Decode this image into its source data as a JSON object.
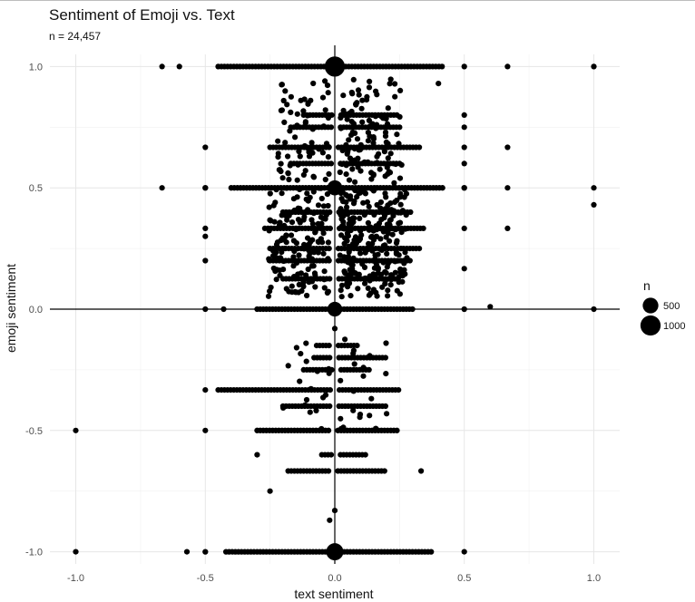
{
  "chart_data": {
    "type": "scatter",
    "title": "Sentiment of Emoji vs. Text",
    "subtitle": "n = 24,457",
    "xlabel": "text sentiment",
    "ylabel": "emoji sentiment",
    "xlim": [
      -1.1,
      1.1
    ],
    "ylim": [
      -1.05,
      1.05
    ],
    "x_ticks": [
      -1.0,
      -0.5,
      0.0,
      0.5,
      1.0
    ],
    "x_tick_labels": [
      "-1.0",
      "-0.5",
      "0.0",
      "0.5",
      "1.0"
    ],
    "y_ticks": [
      -1.0,
      -0.5,
      0.0,
      0.5,
      1.0
    ],
    "y_tick_labels": [
      "-1.0",
      "-0.5",
      "0.0",
      "0.5",
      "1.0"
    ],
    "grid": true,
    "reference_lines": {
      "x": 0,
      "y": 0
    },
    "point_color": "#000000",
    "size_legend": {
      "title": "n",
      "entries": [
        {
          "label": "500",
          "n": 500
        },
        {
          "label": "1000",
          "n": 1000
        }
      ],
      "placement": "right"
    },
    "points": [
      {
        "x": 0.0,
        "y": 1.0,
        "n": 1000
      },
      {
        "x": 0.0,
        "y": 0.5,
        "n": 450
      },
      {
        "x": 0.0,
        "y": 0.0,
        "n": 420
      },
      {
        "x": 0.0,
        "y": -1.0,
        "n": 650
      },
      {
        "x": -0.667,
        "y": 1.0,
        "n": 2
      },
      {
        "x": -0.6,
        "y": 1.0,
        "n": 1
      },
      {
        "x": 0.5,
        "y": 1.0,
        "n": 4
      },
      {
        "x": 0.667,
        "y": 1.0,
        "n": 2
      },
      {
        "x": 1.0,
        "y": 1.0,
        "n": 4
      },
      {
        "x": 0.4,
        "y": 0.93,
        "n": 1
      },
      {
        "x": -0.5,
        "y": 0.667,
        "n": 2
      },
      {
        "x": 0.5,
        "y": 0.8,
        "n": 2
      },
      {
        "x": 0.5,
        "y": 0.75,
        "n": 2
      },
      {
        "x": 0.5,
        "y": 0.667,
        "n": 2
      },
      {
        "x": 0.5,
        "y": 0.6,
        "n": 1
      },
      {
        "x": 0.667,
        "y": 0.667,
        "n": 1
      },
      {
        "x": -0.667,
        "y": 0.5,
        "n": 2
      },
      {
        "x": -0.5,
        "y": 0.5,
        "n": 5
      },
      {
        "x": 0.5,
        "y": 0.5,
        "n": 5
      },
      {
        "x": 0.667,
        "y": 0.5,
        "n": 3
      },
      {
        "x": 1.0,
        "y": 0.5,
        "n": 2
      },
      {
        "x": 1.0,
        "y": 0.43,
        "n": 1
      },
      {
        "x": 0.667,
        "y": 0.333,
        "n": 1
      },
      {
        "x": -0.5,
        "y": 0.333,
        "n": 1
      },
      {
        "x": -0.5,
        "y": 0.3,
        "n": 1
      },
      {
        "x": -0.5,
        "y": 0.2,
        "n": 1
      },
      {
        "x": -0.5,
        "y": 0.0,
        "n": 3
      },
      {
        "x": -0.429,
        "y": 0.0,
        "n": 1
      },
      {
        "x": 0.5,
        "y": 0.333,
        "n": 1
      },
      {
        "x": 0.5,
        "y": 0.167,
        "n": 1
      },
      {
        "x": 0.5,
        "y": 0.0,
        "n": 4
      },
      {
        "x": 0.6,
        "y": 0.01,
        "n": 1
      },
      {
        "x": 1.0,
        "y": 0.0,
        "n": 2
      },
      {
        "x": -1.0,
        "y": -0.5,
        "n": 1
      },
      {
        "x": -0.5,
        "y": -0.333,
        "n": 2
      },
      {
        "x": -0.5,
        "y": -0.5,
        "n": 3
      },
      {
        "x": -0.3,
        "y": -0.6,
        "n": 1
      },
      {
        "x": -0.25,
        "y": -0.75,
        "n": 1
      },
      {
        "x": 0.333,
        "y": -0.667,
        "n": 1
      },
      {
        "x": -0.5,
        "y": -1.0,
        "n": 4
      },
      {
        "x": -0.571,
        "y": -1.0,
        "n": 1
      },
      {
        "x": -1.0,
        "y": -1.0,
        "n": 2
      },
      {
        "x": 0.5,
        "y": -1.0,
        "n": 2
      },
      {
        "x": -0.02,
        "y": -0.87,
        "n": 1
      },
      {
        "x": 0.0,
        "y": -0.83,
        "n": 1
      },
      {
        "x": 0.0,
        "y": -0.08,
        "n": 1
      }
    ],
    "point_bands": [
      {
        "y": 1.0,
        "x_min": -0.45,
        "x_max": 0.42,
        "n": 4
      },
      {
        "y": 0.5,
        "x_min": -0.4,
        "x_max": 0.42,
        "n": 4
      },
      {
        "y": 0.0,
        "x_min": -0.3,
        "x_max": 0.3,
        "n": 3
      },
      {
        "y": 0.333,
        "x_min": -0.27,
        "x_max": 0.35,
        "n": 3
      },
      {
        "y": 0.667,
        "x_min": -0.25,
        "x_max": 0.33,
        "n": 3
      },
      {
        "y": 0.75,
        "x_min": -0.17,
        "x_max": 0.25,
        "n": 3
      },
      {
        "y": 0.25,
        "x_min": -0.25,
        "x_max": 0.33,
        "n": 3
      },
      {
        "y": 0.4,
        "x_min": -0.2,
        "x_max": 0.3,
        "n": 3
      },
      {
        "y": 0.6,
        "x_min": -0.17,
        "x_max": 0.25,
        "n": 3
      },
      {
        "y": 0.2,
        "x_min": -0.25,
        "x_max": 0.3,
        "n": 3
      },
      {
        "y": 0.8,
        "x_min": -0.12,
        "x_max": 0.25,
        "n": 3
      },
      {
        "y": 0.125,
        "x_min": -0.2,
        "x_max": 0.25,
        "n": 2
      },
      {
        "y": -0.333,
        "x_min": -0.45,
        "x_max": 0.25,
        "n": 3
      },
      {
        "y": -0.5,
        "x_min": -0.3,
        "x_max": 0.25,
        "n": 4
      },
      {
        "y": -0.25,
        "x_min": -0.12,
        "x_max": 0.14,
        "n": 2
      },
      {
        "y": -0.667,
        "x_min": -0.18,
        "x_max": 0.2,
        "n": 2
      },
      {
        "y": -0.4,
        "x_min": -0.2,
        "x_max": 0.2,
        "n": 2
      },
      {
        "y": -0.15,
        "x_min": -0.07,
        "x_max": 0.09,
        "n": 2
      },
      {
        "y": -1.0,
        "x_min": -0.42,
        "x_max": 0.38,
        "n": 4
      },
      {
        "y": -0.2,
        "x_min": -0.08,
        "x_max": 0.2,
        "n": 2
      },
      {
        "y": -0.6,
        "x_min": -0.05,
        "x_max": 0.12,
        "n": 2
      }
    ],
    "point_clouds": [
      {
        "x_range": [
          0.02,
          0.28
        ],
        "y_range": [
          0.05,
          0.5
        ],
        "count": 240,
        "n": 2
      },
      {
        "x_range": [
          -0.26,
          -0.02
        ],
        "y_range": [
          0.05,
          0.5
        ],
        "count": 150,
        "n": 2
      },
      {
        "x_range": [
          0.02,
          0.26
        ],
        "y_range": [
          0.52,
          0.95
        ],
        "count": 110,
        "n": 2
      },
      {
        "x_range": [
          -0.22,
          -0.02
        ],
        "y_range": [
          0.52,
          0.95
        ],
        "count": 70,
        "n": 2
      },
      {
        "x_range": [
          0.02,
          0.2
        ],
        "y_range": [
          -0.5,
          -0.1
        ],
        "count": 22,
        "n": 1
      },
      {
        "x_range": [
          -0.2,
          -0.02
        ],
        "y_range": [
          -0.5,
          -0.1
        ],
        "count": 18,
        "n": 1
      }
    ]
  }
}
